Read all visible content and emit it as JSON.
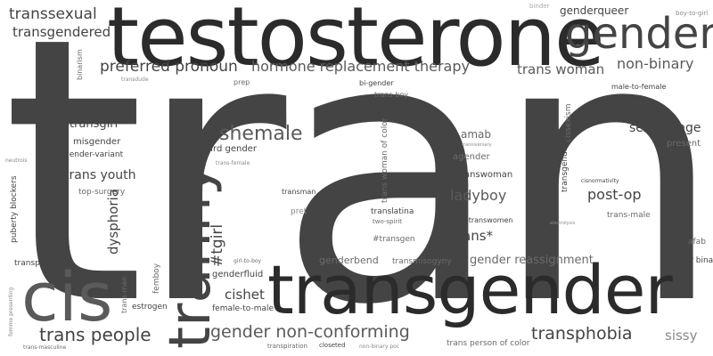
{
  "words": {
    "trans": "trans",
    "testosterone": "testosterone",
    "transgender": "transgender",
    "cis": "cis",
    "tranny": "tranny",
    "gender": "gender",
    "shemale": "shemale",
    "transsexual": "transsexual",
    "transgendered": "transgendered",
    "preferred_pronoun": "preferred pronoun",
    "hormone_replacement_therapy": "hormone replacement therapy",
    "trans_woman": "trans woman",
    "non_binary": "non-binary",
    "genderqueer": "genderqueer",
    "binder": "binder",
    "boy_to_girl": "boy-to-girl",
    "binarism": "binarism",
    "transdude": "transdude",
    "prep": "prep",
    "bi_gender": "bi-gender",
    "trans_boy": "trans-boy",
    "male_to_female": "male-to-female",
    "transgirl": "transgirl",
    "misgender": "misgender",
    "gender_variant": "gender-variant",
    "neutrois": "neutrois",
    "trans_youth": "trans youth",
    "top_surgery": "top-surgery",
    "puberty_blockers": "puberty blockers",
    "dysphoria": "dysphoria",
    "third_gender": "third gender",
    "trans_female": "trans-female",
    "tgirl": "#tgirl",
    "transman": "transman",
    "pret": "pret",
    "amab": "amab",
    "tranniversary": "tranniversary",
    "agender": "agender",
    "trans_woman_of_color": "trans woman of color",
    "transwoman": "transwoman",
    "ladyboy": "ladyboy",
    "translatina": "translatina",
    "two_spirit": "two-spirit",
    "transwomen": "#transwomen",
    "transgen": "#transgen",
    "trans_star": "trans*",
    "cissexism": "cissexism",
    "transgenders": "transgenders",
    "sex_change": "sex-change",
    "present": "present",
    "cisnormativity": "cisnormativity",
    "post_op": "post-op",
    "trans_male": "trans-male",
    "electrolysis": "electrolysis",
    "afab": "afab",
    "transpeople": "transpeople",
    "femboy": "femboy",
    "girl_to_boy": "girl-to-boy",
    "genderfluid": "genderfluid",
    "genderbend": "genderbend",
    "transmisogyny": "transmisogyny",
    "gender_reassignment": "gender reassignment",
    "gender_binary": "gender binary",
    "trans_man": "trans-man",
    "estrogen": "estrogen",
    "cishet": "cishet",
    "female_to_male": "female-to-male",
    "trans_people": "trans people",
    "gender_non_conforming": "gender non-conforming",
    "transphobia": "transphobia",
    "sissy": "sissy",
    "femme_presenting": "femme presenting",
    "trans_masculine": "trans-masculine",
    "transpiration": "transpiration",
    "closeted": "closeted",
    "non_binary_poc": "non-binary poc",
    "trans_person_of_color": "trans person of color"
  },
  "colors": {
    "darkest": "#2b2b2b",
    "dark": "#444444",
    "mid": "#5a5a5a",
    "medium": "#6a6a6a",
    "light": "#8a8a8a",
    "lightest": "#a8a8a8"
  }
}
